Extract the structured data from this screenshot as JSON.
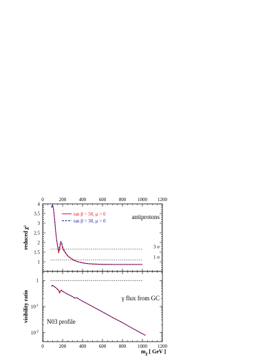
{
  "chart_data": [
    {
      "type": "line",
      "panel": "upper",
      "ylabel": "reduced χ²",
      "annotation": "antiprotons",
      "xlim": [
        0,
        1200
      ],
      "ylim": [
        0.5,
        4
      ],
      "x_ticks": [
        "0",
        "200",
        "400",
        "600",
        "800",
        "1000",
        "1200"
      ],
      "y_ticks": [
        "1",
        "1.5",
        "2",
        "2.5",
        "3",
        "3.5",
        "4"
      ],
      "legend_position": "top-center",
      "legend": [
        {
          "label": "tan β = 50, μ > 0",
          "color": "#e8121c",
          "dash": "solid"
        },
        {
          "label": "tan β = 30, μ > 0",
          "color": "#1a1aa8",
          "dash": "dashed"
        }
      ],
      "reference_lines": [
        {
          "label": "3 σ",
          "y": 1.65
        },
        {
          "label": "1 σ",
          "y": 1.1
        }
      ],
      "series": [
        {
          "x": [
            88,
            100,
            110,
            120,
            130,
            140,
            150,
            160,
            170,
            180,
            190,
            200,
            215,
            230,
            250,
            280,
            310,
            350,
            400,
            450,
            500,
            600,
            700,
            800,
            900,
            1000
          ],
          "y": [
            3.85,
            3.95,
            3.7,
            3.2,
            2.6,
            2.15,
            1.8,
            1.45,
            1.65,
            2.0,
            1.95,
            1.7,
            1.55,
            1.45,
            1.3,
            1.18,
            1.08,
            1.0,
            0.94,
            0.9,
            0.88,
            0.86,
            0.86,
            0.86,
            0.86,
            0.86
          ]
        },
        {
          "x": [
            88,
            100,
            110,
            120,
            130,
            140,
            150,
            160,
            170,
            180,
            190,
            200,
            215,
            230,
            250,
            280,
            310,
            350,
            400,
            450,
            500,
            600,
            700,
            800,
            900,
            1000
          ],
          "y": [
            3.8,
            3.92,
            3.68,
            3.18,
            2.58,
            2.12,
            1.85,
            1.6,
            1.78,
            2.05,
            2.02,
            1.78,
            1.6,
            1.48,
            1.32,
            1.2,
            1.1,
            1.01,
            0.95,
            0.91,
            0.89,
            0.87,
            0.86,
            0.86,
            0.86,
            0.86
          ]
        }
      ]
    },
    {
      "type": "line",
      "panel": "lower",
      "ylabel": "visibility ratio",
      "xlabel_main": "m",
      "xlabel_sub": "χ",
      "xlabel_unit": "[ GeV ]",
      "annotation_1": "γ flux from GC",
      "annotation_2": "N03 profile",
      "xlim": [
        0,
        1200
      ],
      "ylim_log10": [
        -2.35,
        0.35
      ],
      "y_scale": "log",
      "x_ticks": [
        "0",
        "200",
        "400",
        "600",
        "800",
        "1000",
        "1200"
      ],
      "y_ticks": [
        {
          "base": "1",
          "exp": ""
        },
        {
          "base": "10",
          "exp": "-1"
        },
        {
          "base": "10",
          "exp": "-2"
        }
      ],
      "reference_lines": [
        {
          "y": 1
        }
      ],
      "series": [
        {
          "x": [
            88,
            100,
            120,
            140,
            160,
            170,
            180,
            190,
            200,
            250,
            300,
            320,
            340,
            400,
            500,
            600,
            700,
            800,
            900,
            1000,
            1030
          ],
          "y": [
            0.62,
            0.65,
            0.58,
            0.5,
            0.42,
            0.33,
            0.4,
            0.42,
            0.38,
            0.3,
            0.24,
            0.21,
            0.22,
            0.16,
            0.1,
            0.062,
            0.038,
            0.024,
            0.0145,
            0.009,
            0.0078
          ]
        },
        {
          "x": [
            88,
            100,
            120,
            140,
            160,
            170,
            180,
            190,
            200,
            250,
            300,
            320,
            340,
            400,
            500,
            600,
            700,
            800,
            900,
            1000,
            1030
          ],
          "y": [
            0.6,
            0.63,
            0.57,
            0.49,
            0.41,
            0.36,
            0.41,
            0.43,
            0.39,
            0.3,
            0.24,
            0.21,
            0.215,
            0.16,
            0.1,
            0.062,
            0.038,
            0.024,
            0.0145,
            0.009,
            0.0078
          ]
        }
      ]
    }
  ]
}
